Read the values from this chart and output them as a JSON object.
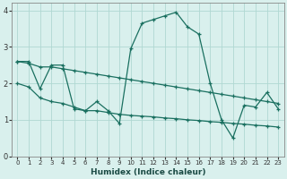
{
  "xlabel": "Humidex (Indice chaleur)",
  "xlim": [
    -0.5,
    23.5
  ],
  "ylim": [
    0,
    4.2
  ],
  "yticks": [
    0,
    1,
    2,
    3,
    4
  ],
  "xticks": [
    0,
    1,
    2,
    3,
    4,
    5,
    6,
    7,
    8,
    9,
    10,
    11,
    12,
    13,
    14,
    15,
    16,
    17,
    18,
    19,
    20,
    21,
    22,
    23
  ],
  "background_color": "#d9f0ed",
  "grid_color": "#b0d8d2",
  "line_color": "#1a7060",
  "series": [
    {
      "x": [
        0,
        1,
        2,
        3,
        4,
        5,
        6,
        7,
        8,
        9,
        10,
        11,
        12,
        13,
        14,
        15,
        16,
        17,
        18,
        19,
        20,
        21,
        22,
        23
      ],
      "y": [
        2.6,
        2.6,
        1.85,
        2.5,
        2.5,
        1.3,
        1.25,
        1.5,
        1.25,
        0.9,
        2.95,
        3.65,
        3.75,
        3.85,
        3.95,
        3.55,
        3.35,
        2.0,
        1.0,
        0.5,
        1.4,
        1.35,
        1.75,
        1.3
      ]
    },
    {
      "x": [
        0,
        1,
        2,
        3,
        4,
        5,
        6,
        7,
        8,
        9,
        10,
        11,
        12,
        13,
        14,
        15,
        16,
        17,
        18,
        19,
        20,
        21,
        22,
        23
      ],
      "y": [
        2.6,
        2.55,
        2.45,
        2.45,
        2.4,
        2.35,
        2.3,
        2.25,
        2.2,
        2.15,
        2.1,
        2.05,
        2.0,
        1.95,
        1.9,
        1.85,
        1.8,
        1.75,
        1.7,
        1.65,
        1.6,
        1.55,
        1.5,
        1.45
      ]
    },
    {
      "x": [
        0,
        1,
        2,
        3,
        4,
        5,
        6,
        7,
        8,
        9,
        10,
        11,
        12,
        13,
        14,
        15,
        16,
        17,
        18,
        19,
        20,
        21,
        22,
        23
      ],
      "y": [
        2.0,
        1.9,
        1.6,
        1.5,
        1.45,
        1.35,
        1.25,
        1.25,
        1.2,
        1.15,
        1.12,
        1.1,
        1.08,
        1.05,
        1.03,
        1.0,
        0.98,
        0.95,
        0.93,
        0.9,
        0.88,
        0.85,
        0.83,
        0.8
      ]
    }
  ]
}
